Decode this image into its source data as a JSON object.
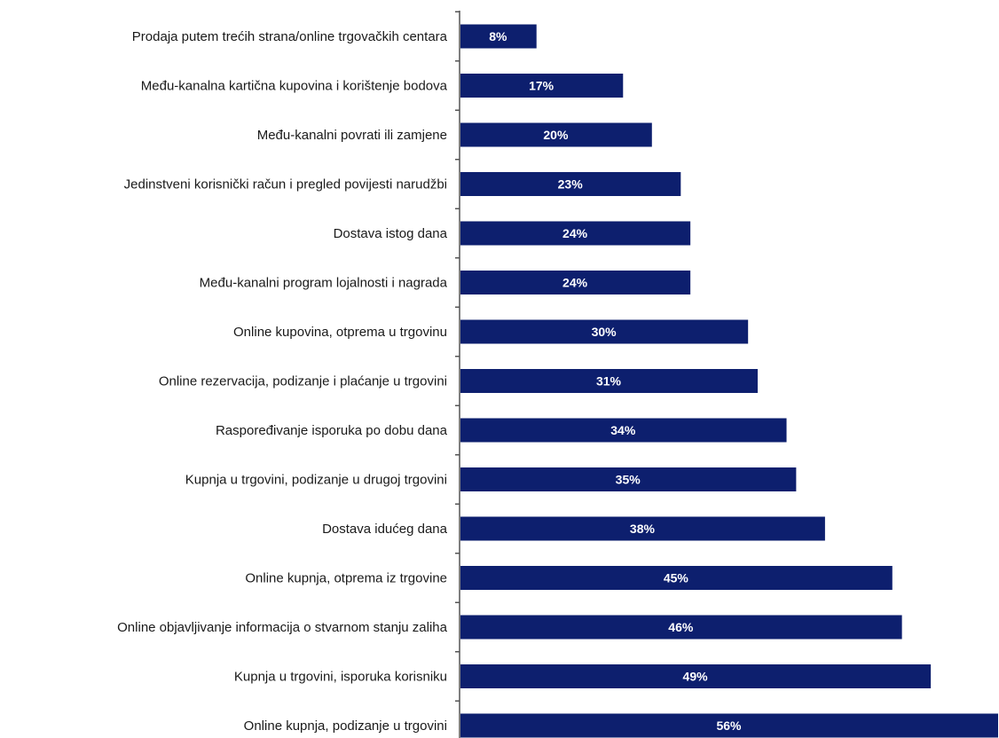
{
  "chart_data": {
    "type": "bar",
    "orientation": "horizontal",
    "title": "",
    "xlabel": "",
    "ylabel": "",
    "unit": "%",
    "xlim": [
      0,
      56
    ],
    "grid": false,
    "legend": "none",
    "bar_color": "#0d1f6e",
    "label_color": "#ffffff",
    "categories": [
      "Prodaja putem trećih strana/online trgovačkih centara",
      "Među-kanalna kartična kupovina i korištenje bodova",
      "Među-kanalni povrati ili zamjene",
      "Jedinstveni korisnički račun i pregled povijesti narudžbi",
      "Dostava istog dana",
      "Među-kanalni program lojalnosti i nagrada",
      "Online kupovina, otprema u trgovinu",
      "Online rezervacija, podizanje i plaćanje u trgovini",
      "Raspoređivanje isporuka po dobu dana",
      "Kupnja u trgovini, podizanje u drugoj trgovini",
      "Dostava idućeg dana",
      "Online kupnja, otprema iz trgovine",
      "Online objavljivanje informacija o stvarnom stanju zaliha",
      "Kupnja u trgovini, isporuka korisniku",
      "Online kupnja, podizanje u trgovini"
    ],
    "values": [
      8,
      17,
      20,
      23,
      24,
      24,
      30,
      31,
      34,
      35,
      38,
      45,
      46,
      49,
      56
    ],
    "value_labels": [
      "8%",
      "17%",
      "20%",
      "23%",
      "24%",
      "24%",
      "30%",
      "31%",
      "34%",
      "35%",
      "38%",
      "45%",
      "46%",
      "49%",
      "56%"
    ]
  }
}
